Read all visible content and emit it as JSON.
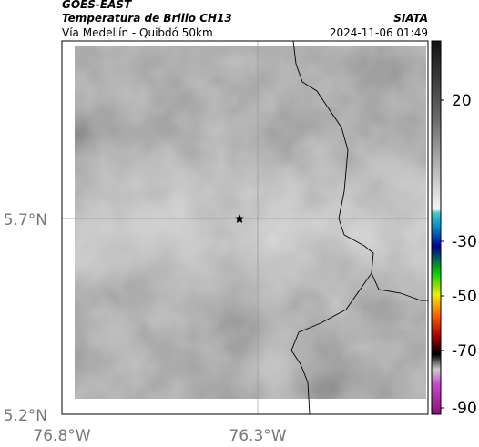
{
  "header": {
    "title": "GOES-EAST",
    "subtitle": "Temperatura de Brillo CH13",
    "location": "Vía Medellín - Quibdó 50km",
    "source": "SIATA",
    "datetime": "2024-11-06 01:49"
  },
  "map": {
    "lat_labels": [
      "5.7°N",
      "5.2°N"
    ],
    "lon_labels": [
      "76.8°W",
      "76.3°W"
    ]
  },
  "colorbar": {
    "ticks": [
      20,
      -30,
      -50,
      -70,
      -90
    ]
  }
}
